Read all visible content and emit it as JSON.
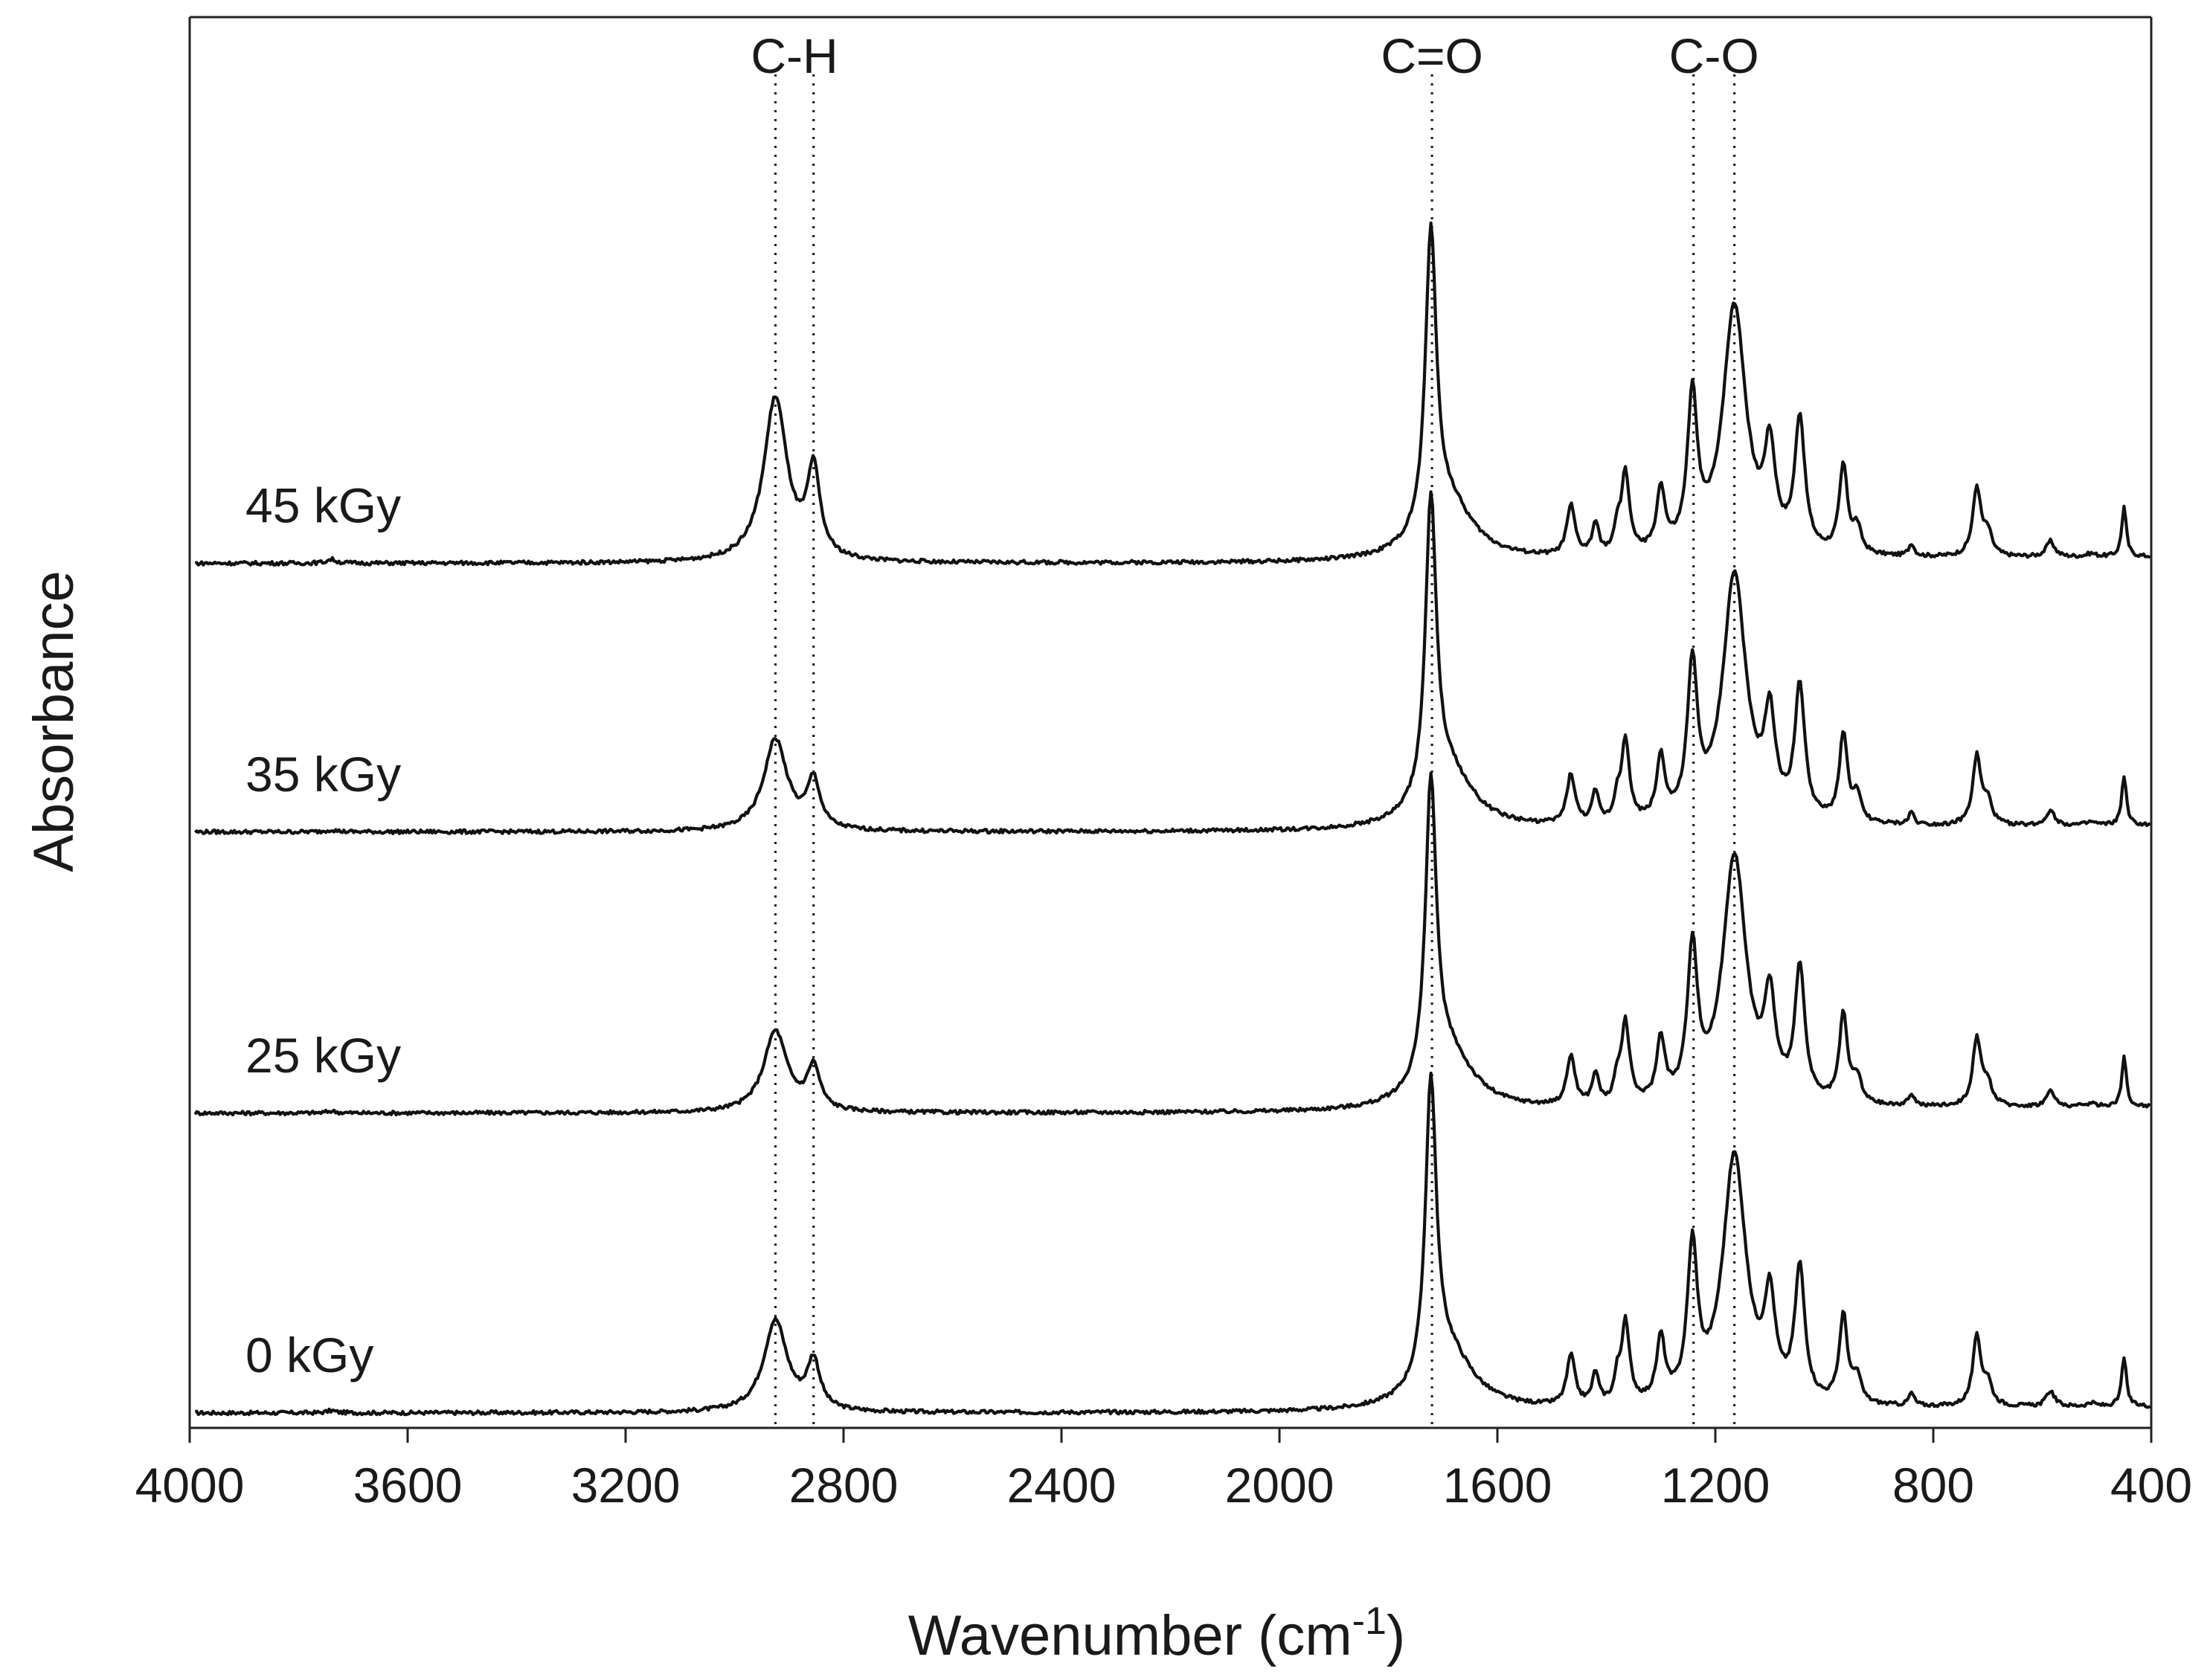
{
  "chart_data": {
    "type": "line",
    "title": "",
    "xlabel": "Wavenumber (cm",
    "xlabel_sup": "-1",
    "xlabel_close": ")",
    "ylabel": "Absorbance",
    "xlim": [
      4000,
      400
    ],
    "x_reversed": true,
    "grid": false,
    "y_ticks_shown": false,
    "x_ticks": [
      4000,
      3600,
      3200,
      2800,
      2400,
      2000,
      1600,
      1200,
      800,
      400
    ],
    "x_tick_labels": [
      "4000",
      "3600",
      "3200",
      "2800",
      "2400",
      "2000",
      "1600",
      "1200",
      "800",
      "400"
    ],
    "peak_markers": [
      {
        "group": "C-H",
        "positions": [
          2925,
          2855
        ]
      },
      {
        "group": "C=O",
        "positions": [
          1720
        ]
      },
      {
        "group": "C-O",
        "positions": [
          1240,
          1165
        ]
      }
    ],
    "series_common_peaks": [
      {
        "x": 3740,
        "w": 10,
        "h": 0.01
      },
      {
        "x": 2925,
        "w": 26,
        "h": 0.42
      },
      {
        "x": 2855,
        "w": 14,
        "h": 0.22
      },
      {
        "x": 1722,
        "w": 12,
        "h": 0.95
      },
      {
        "x": 1690,
        "w": 55,
        "h": 0.18
      },
      {
        "x": 1465,
        "w": 9,
        "h": 0.16
      },
      {
        "x": 1420,
        "w": 7,
        "h": 0.1
      },
      {
        "x": 1380,
        "w": 6,
        "h": 0.07
      },
      {
        "x": 1365,
        "w": 9,
        "h": 0.26
      },
      {
        "x": 1300,
        "w": 9,
        "h": 0.2
      },
      {
        "x": 1242,
        "w": 11,
        "h": 0.48
      },
      {
        "x": 1165,
        "w": 26,
        "h": 0.8
      },
      {
        "x": 1100,
        "w": 12,
        "h": 0.3
      },
      {
        "x": 1045,
        "w": 11,
        "h": 0.42
      },
      {
        "x": 965,
        "w": 9,
        "h": 0.28
      },
      {
        "x": 940,
        "w": 9,
        "h": 0.08
      },
      {
        "x": 840,
        "w": 6,
        "h": 0.04
      },
      {
        "x": 720,
        "w": 9,
        "h": 0.22
      },
      {
        "x": 700,
        "w": 9,
        "h": 0.07
      },
      {
        "x": 585,
        "w": 9,
        "h": 0.05
      },
      {
        "x": 510,
        "w": 10,
        "h": 0.01
      },
      {
        "x": 450,
        "w": 5,
        "h": 0.16
      }
    ],
    "series": [
      {
        "name": "0 kGy",
        "label": "0 kGy",
        "baseline": 0.0,
        "ch_scale": 0.7,
        "co_scale": 1.0,
        "drift": 0.02
      },
      {
        "name": "25 kGy",
        "label": "25 kGy",
        "baseline": 0.96,
        "ch_scale": 0.62,
        "co_scale": 1.0,
        "drift": 0.02
      },
      {
        "name": "35 kGy",
        "label": "35 kGy",
        "baseline": 1.86,
        "ch_scale": 0.7,
        "co_scale": 1.0,
        "drift": 0.02
      },
      {
        "name": "45 kGy",
        "label": "45 kGy",
        "baseline": 2.72,
        "ch_scale": 1.25,
        "co_scale": 1.0,
        "drift": 0.02
      }
    ]
  }
}
